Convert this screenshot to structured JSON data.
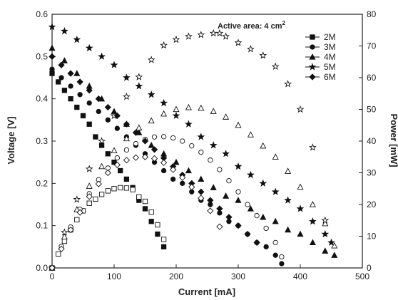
{
  "chart_data": {
    "type": "scatter",
    "xlabel": "Current [mA]",
    "ylabel": "Voltage [V]",
    "y2label": "Power [mW]",
    "annotation": {
      "prefix": "Active area: 4 cm",
      "superscript": "2"
    },
    "xlim": [
      0,
      500
    ],
    "ylim": [
      0,
      0.6
    ],
    "y2lim": [
      0,
      80
    ],
    "xticks": [
      "0",
      "100",
      "200",
      "300",
      "400",
      "500"
    ],
    "yticks": [
      "0.0",
      "0.1",
      "0.2",
      "0.3",
      "0.4",
      "0.5",
      "0.6"
    ],
    "y2ticks": [
      "0",
      "10",
      "20",
      "30",
      "40",
      "50",
      "60",
      "70",
      "80"
    ],
    "legend_position": "top-right",
    "series": [
      {
        "name": "2M",
        "marker": "square",
        "voltage": {
          "x": [
            0,
            10,
            20,
            30,
            40,
            50,
            60,
            70,
            80,
            90,
            100,
            110,
            120,
            130,
            140,
            150,
            160,
            170,
            180
          ],
          "y": [
            0.46,
            0.44,
            0.42,
            0.4,
            0.38,
            0.36,
            0.34,
            0.31,
            0.29,
            0.27,
            0.25,
            0.23,
            0.21,
            0.19,
            0.16,
            0.14,
            0.11,
            0.08,
            0.05
          ]
        },
        "power": {
          "x": [
            0,
            10,
            20,
            30,
            40,
            50,
            60,
            70,
            80,
            90,
            100,
            110,
            120,
            130,
            140,
            150,
            160,
            170,
            180
          ],
          "y": [
            0,
            4.4,
            8.4,
            12.0,
            15.2,
            18.0,
            20.4,
            21.7,
            23.2,
            24.3,
            25.0,
            25.3,
            25.2,
            24.7,
            22.4,
            21.0,
            17.6,
            13.6,
            9.0
          ]
        }
      },
      {
        "name": "3M",
        "marker": "circle",
        "voltage": {
          "x": [
            0,
            15,
            30,
            45,
            60,
            75,
            90,
            105,
            120,
            135,
            150,
            165,
            180,
            195,
            210,
            225,
            240,
            255,
            270,
            285,
            300,
            315,
            330,
            345,
            360,
            370
          ],
          "y": [
            0.47,
            0.45,
            0.43,
            0.41,
            0.39,
            0.37,
            0.35,
            0.33,
            0.31,
            0.29,
            0.27,
            0.25,
            0.23,
            0.21,
            0.2,
            0.18,
            0.16,
            0.15,
            0.13,
            0.11,
            0.1,
            0.08,
            0.06,
            0.05,
            0.03,
            0.01
          ]
        },
        "power": {
          "x": [
            0,
            15,
            30,
            45,
            60,
            75,
            90,
            105,
            120,
            135,
            150,
            165,
            180,
            195,
            210,
            225,
            240,
            255,
            270,
            285,
            300,
            315,
            330,
            345,
            360,
            370
          ],
          "y": [
            0,
            6.8,
            12.9,
            18.5,
            23.4,
            27.8,
            31.5,
            34.7,
            37.2,
            39.2,
            40.5,
            41.3,
            41.4,
            41.0,
            40.0,
            38.5,
            36.5,
            34.0,
            31.0,
            27.5,
            24.0,
            20.0,
            16.5,
            12.5,
            8.0,
            3.5
          ]
        }
      },
      {
        "name": "4M",
        "marker": "triangle",
        "voltage": {
          "x": [
            0,
            20,
            40,
            60,
            80,
            100,
            120,
            140,
            160,
            180,
            200,
            220,
            240,
            260,
            280,
            300,
            320,
            340,
            360,
            380,
            400,
            420,
            440,
            455
          ],
          "y": [
            0.52,
            0.49,
            0.46,
            0.43,
            0.4,
            0.37,
            0.34,
            0.32,
            0.29,
            0.27,
            0.25,
            0.23,
            0.21,
            0.19,
            0.17,
            0.16,
            0.14,
            0.12,
            0.11,
            0.09,
            0.08,
            0.06,
            0.04,
            0.03
          ]
        },
        "power": {
          "x": [
            0,
            20,
            40,
            60,
            80,
            100,
            120,
            140,
            160,
            180,
            200,
            220,
            240,
            260,
            280,
            300,
            320,
            340,
            360,
            380,
            400,
            420,
            440,
            455
          ],
          "y": [
            0,
            9.8,
            18.4,
            25.8,
            32.0,
            37.0,
            40.8,
            44.2,
            46.4,
            48.6,
            50.0,
            50.6,
            50.4,
            49.4,
            47.6,
            45.0,
            42.0,
            38.5,
            35.0,
            30.5,
            25.5,
            20.0,
            14.0,
            7.0
          ]
        }
      },
      {
        "name": "5M",
        "marker": "star",
        "voltage": {
          "x": [
            0,
            20,
            40,
            60,
            80,
            100,
            120,
            140,
            160,
            180,
            200,
            220,
            240,
            260,
            280,
            300,
            320,
            340,
            360,
            380,
            400,
            420,
            440,
            450
          ],
          "y": [
            0.57,
            0.56,
            0.54,
            0.52,
            0.5,
            0.48,
            0.45,
            0.43,
            0.41,
            0.39,
            0.36,
            0.34,
            0.31,
            0.29,
            0.27,
            0.24,
            0.22,
            0.2,
            0.18,
            0.16,
            0.14,
            0.11,
            0.08,
            0.06
          ]
        },
        "power": {
          "x": [
            0,
            20,
            40,
            60,
            80,
            100,
            120,
            140,
            160,
            180,
            200,
            220,
            240,
            260,
            270,
            280,
            300,
            320,
            340,
            360,
            380,
            400,
            420,
            440
          ],
          "y": [
            0,
            11.2,
            21.6,
            31.2,
            40.0,
            48.0,
            54.0,
            60.2,
            65.6,
            70.2,
            72.0,
            73.0,
            73.5,
            74.0,
            74.0,
            73.0,
            71.0,
            69.0,
            67.0,
            63.5,
            58.0,
            50.0,
            38.0,
            15.0
          ]
        }
      },
      {
        "name": "6M",
        "marker": "diamond",
        "voltage": {
          "x": [
            0,
            15,
            30,
            45,
            60,
            75,
            90,
            105,
            120,
            135,
            150,
            165,
            180,
            195,
            210,
            225,
            240,
            255,
            270,
            285,
            300,
            315,
            330
          ],
          "y": [
            0.5,
            0.48,
            0.46,
            0.44,
            0.42,
            0.4,
            0.38,
            0.36,
            0.34,
            0.32,
            0.3,
            0.28,
            0.26,
            0.24,
            0.22,
            0.2,
            0.18,
            0.16,
            0.14,
            0.12,
            0.1,
            0.08,
            0.06
          ]
        },
        "power": {
          "x": [
            0,
            15,
            30,
            45,
            60,
            75,
            90,
            105,
            120,
            135,
            150,
            165,
            180,
            195,
            210,
            225,
            240,
            255,
            270
          ],
          "y": [
            0,
            6.0,
            12.0,
            17.5,
            22.5,
            26.5,
            30.0,
            32.5,
            34.0,
            34.8,
            35.0,
            34.5,
            33.2,
            31.0,
            28.5,
            25.5,
            22.0,
            18.0,
            13.0
          ]
        }
      }
    ]
  }
}
